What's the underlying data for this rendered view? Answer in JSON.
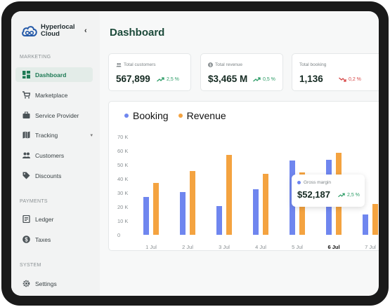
{
  "brand": {
    "name": "Hyperlocal Cloud",
    "collapse_icon": "chevron-left-icon"
  },
  "sidebar": {
    "sections": [
      {
        "label": "MARKETING"
      },
      {
        "label": "PAYMENTS"
      },
      {
        "label": "SYSTEM"
      }
    ],
    "items": [
      {
        "label": "Dashboard",
        "icon": "grid-icon",
        "active": true
      },
      {
        "label": "Marketplace",
        "icon": "cart-icon"
      },
      {
        "label": "Service Provider",
        "icon": "briefcase-icon"
      },
      {
        "label": "Tracking",
        "icon": "map-icon",
        "has_submenu": true
      },
      {
        "label": "Customers",
        "icon": "users-icon"
      },
      {
        "label": "Discounts",
        "icon": "tag-icon"
      },
      {
        "label": "Ledger",
        "icon": "ledger-icon"
      },
      {
        "label": "Taxes",
        "icon": "dollar-icon"
      },
      {
        "label": "Settings",
        "icon": "gear-icon"
      }
    ]
  },
  "header": {
    "title": "Dashboard"
  },
  "stats": [
    {
      "label": "Total customers",
      "icon": "users-icon",
      "value": "567,899",
      "trend": "2,5 %",
      "direction": "up"
    },
    {
      "label": "Total revenue",
      "icon": "coin-icon",
      "value": "$3,465 M",
      "trend": "0,5 %",
      "direction": "up"
    },
    {
      "label": "Total booking",
      "value": "1,136",
      "trend": "0,2 %",
      "direction": "down"
    }
  ],
  "tooltip": {
    "label": "Gross margin",
    "value": "$52,187",
    "trend": "2,5 %"
  },
  "colors": {
    "booking": "#6f86ef",
    "revenue": "#f4a340",
    "accent": "#1e7a55",
    "up": "#2c9c66",
    "down": "#d64545"
  },
  "chart_data": {
    "type": "bar",
    "categories": [
      "1 Jul",
      "2 Jul",
      "3 Jul",
      "4 Jul",
      "5 Jul",
      "6 Jul",
      "7 Jul"
    ],
    "highlighted_category": "6 Jul",
    "series": [
      {
        "name": "Booking",
        "values": [
          27000,
          30500,
          20500,
          32500,
          53000,
          53500,
          14500
        ]
      },
      {
        "name": "Revenue",
        "values": [
          37000,
          45500,
          57000,
          43500,
          44500,
          58500,
          22000
        ]
      }
    ],
    "yticks": [
      "0",
      "10 K",
      "20 K",
      "30 K",
      "40 K",
      "50 K",
      "60 K",
      "70 K"
    ],
    "ylim": [
      0,
      70000
    ],
    "legend": "top-left",
    "grid": false
  }
}
